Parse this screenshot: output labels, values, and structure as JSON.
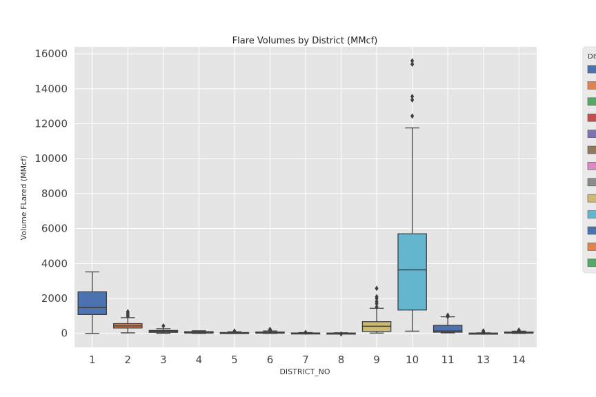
{
  "chart_data": {
    "type": "box",
    "title": "Flare Volumes by District (MMcf)",
    "xlabel": "DISTRICT_NO",
    "ylabel": "Volume FLared (MMcf)",
    "ylim": [
      -800,
      16400
    ],
    "yticks": [
      0,
      2000,
      4000,
      6000,
      8000,
      10000,
      12000,
      14000,
      16000
    ],
    "grid": true,
    "legend": {
      "title": "DIS",
      "placement": "right (clipped)"
    },
    "categories": [
      "1",
      "2",
      "3",
      "4",
      "5",
      "6",
      "7",
      "8",
      "9",
      "10",
      "11",
      "13",
      "14"
    ],
    "boxes": [
      {
        "category": "1",
        "color": "#4c72b0",
        "whislo": 0,
        "q1": 1080,
        "med": 1480,
        "q3": 2380,
        "whishi": 3520,
        "fliers": []
      },
      {
        "category": "2",
        "color": "#dd8452",
        "whislo": 30,
        "q1": 310,
        "med": 430,
        "q3": 560,
        "whishi": 900,
        "fliers": [
          970,
          1050,
          1160,
          1240
        ]
      },
      {
        "category": "3",
        "color": "#55a868",
        "whislo": 10,
        "q1": 60,
        "med": 110,
        "q3": 170,
        "whishi": 270,
        "fliers": [
          430
        ]
      },
      {
        "category": "4",
        "color": "#c44e52",
        "whislo": 0,
        "q1": 20,
        "med": 50,
        "q3": 100,
        "whishi": 150,
        "fliers": []
      },
      {
        "category": "5",
        "color": "#8172b3",
        "whislo": 0,
        "q1": 10,
        "med": 25,
        "q3": 50,
        "whishi": 90,
        "fliers": [
          110,
          130
        ]
      },
      {
        "category": "6",
        "color": "#937860",
        "whislo": 0,
        "q1": 15,
        "med": 40,
        "q3": 80,
        "whishi": 140,
        "fliers": [
          190,
          230
        ]
      },
      {
        "category": "7",
        "color": "#da8bc3",
        "whislo": 0,
        "q1": 5,
        "med": 12,
        "q3": 25,
        "whishi": 45,
        "fliers": [
          60
        ]
      },
      {
        "category": "8",
        "color": "#8c8c8c",
        "whislo": 0,
        "q1": 3,
        "med": 8,
        "q3": 18,
        "whishi": 35,
        "fliers": [
          -30
        ]
      },
      {
        "category": "9",
        "color": "#ccb974",
        "whislo": 20,
        "q1": 110,
        "med": 410,
        "q3": 670,
        "whishi": 1440,
        "fliers": [
          1520,
          1700,
          1830,
          2000,
          2100,
          2580
        ]
      },
      {
        "category": "10",
        "color": "#64b5cd",
        "whislo": 130,
        "q1": 1340,
        "med": 3640,
        "q3": 5700,
        "whishi": 11760,
        "fliers": [
          12440,
          13360,
          13560,
          15410,
          15600
        ]
      },
      {
        "category": "11",
        "color": "#4c72b0",
        "whislo": 30,
        "q1": 70,
        "med": 140,
        "q3": 460,
        "whishi": 950,
        "fliers": [
          960,
          1000,
          1040
        ]
      },
      {
        "category": "13",
        "color": "#dd8452",
        "whislo": 0,
        "q1": 3,
        "med": 8,
        "q3": 15,
        "whishi": 30,
        "fliers": [
          60,
          100,
          140
        ]
      },
      {
        "category": "14",
        "color": "#55a868",
        "whislo": 0,
        "q1": 15,
        "med": 40,
        "q3": 80,
        "whishi": 130,
        "fliers": [
          160,
          190
        ]
      }
    ],
    "legend_colors": [
      "#4c72b0",
      "#dd8452",
      "#55a868",
      "#c44e52",
      "#8172b3",
      "#937860",
      "#da8bc3",
      "#8c8c8c",
      "#ccb974",
      "#64b5cd",
      "#4c72b0",
      "#dd8452",
      "#55a868"
    ],
    "plot_background": "#e5e5e5",
    "grid_color": "#ffffff",
    "line_color": "#3f3f3f"
  }
}
